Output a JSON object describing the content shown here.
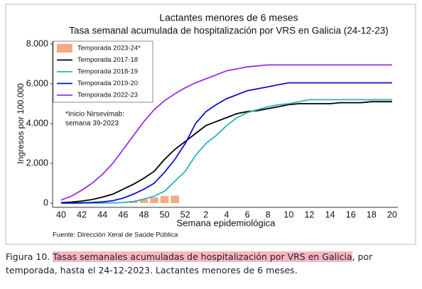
{
  "chart_data": {
    "type": "line",
    "title": "Lactantes menores de 6 meses",
    "subtitle": "Tasa semanal acumulada de hospitalización por VRS en Galicia (24-12-23)",
    "x_label": "Semana epidemiológica",
    "y_label": "Ingresos por 100.000",
    "source": "Fuente: Dirección Xeral de Saúde Pública",
    "annotations": [
      "*Inicio Nirsevimab:",
      "semana 39-2023"
    ],
    "legend": "upper left",
    "categories": [
      "40",
      null,
      "42",
      null,
      "44",
      null,
      "46",
      null,
      "48",
      null,
      "50",
      null,
      "52",
      null,
      "2",
      null,
      "4",
      null,
      "6",
      null,
      "8",
      null,
      "10",
      null,
      "12",
      null,
      "14",
      null,
      "16",
      null,
      "18",
      null,
      "20"
    ],
    "ylim": [
      0,
      8000
    ],
    "yticks": [
      0,
      {
        "value": 2000,
        "label": "2.000"
      },
      {
        "value": 4000,
        "label": "4.000"
      },
      {
        "value": 6000,
        "label": "6.000"
      },
      {
        "value": 8000,
        "label": "8.000"
      }
    ],
    "series": [
      {
        "name": "Temporada 2023-24*",
        "type": "bar",
        "color": "#f6a983",
        "values": [
          null,
          null,
          null,
          null,
          null,
          null,
          null,
          100,
          200,
          280,
          350,
          370,
          null,
          null,
          null,
          null,
          null,
          null,
          null,
          null,
          null,
          null,
          null,
          null,
          null,
          null,
          null,
          null,
          null,
          null,
          null,
          null,
          null
        ]
      },
      {
        "name": "Temporada 2017-18",
        "type": "line",
        "color": "#000000",
        "values": [
          20,
          50,
          100,
          180,
          300,
          450,
          700,
          950,
          1250,
          1600,
          2200,
          2700,
          3100,
          3500,
          3900,
          4100,
          4300,
          4500,
          4600,
          4650,
          4750,
          4850,
          4950,
          5000,
          5000,
          5000,
          5000,
          5050,
          5050,
          5050,
          5100,
          5100,
          5100
        ]
      },
      {
        "name": "Temporada 2018-19",
        "type": "line",
        "color": "#2ab5b0",
        "values": [
          0,
          0,
          0,
          0,
          0,
          10,
          30,
          80,
          200,
          350,
          600,
          1100,
          1600,
          2400,
          3000,
          3400,
          3900,
          4300,
          4550,
          4700,
          4850,
          4950,
          5000,
          5100,
          5200,
          5200,
          5200,
          5200,
          5200,
          5200,
          5200,
          5200,
          5200
        ]
      },
      {
        "name": "Temporada 2019-20",
        "type": "line",
        "color": "#1010d0",
        "values": [
          0,
          0,
          10,
          30,
          60,
          120,
          250,
          450,
          700,
          1000,
          1550,
          2200,
          3000,
          4000,
          4600,
          4950,
          5250,
          5450,
          5650,
          5750,
          5850,
          5950,
          6050,
          6050,
          6050,
          6050,
          6050,
          6050,
          6050,
          6050,
          6050,
          6050,
          6050
        ]
      },
      {
        "name": "Temporada 2022-23",
        "type": "line",
        "color": "#9b30e0",
        "values": [
          150,
          350,
          650,
          1000,
          1450,
          2000,
          2700,
          3400,
          4100,
          4700,
          5150,
          5500,
          5800,
          6050,
          6250,
          6450,
          6650,
          6750,
          6850,
          6900,
          6950,
          6950,
          6950,
          6950,
          6950,
          6950,
          6950,
          6950,
          6950,
          6950,
          6950,
          6950,
          6950
        ]
      }
    ]
  },
  "caption": {
    "label": "Figura 10.",
    "highlight": "Tasas semanales acumuladas de hospitalización por VRS en Galicia",
    "rest": ", por temporada, hasta el 24-12-2023. Lactantes menores de 6 meses."
  }
}
